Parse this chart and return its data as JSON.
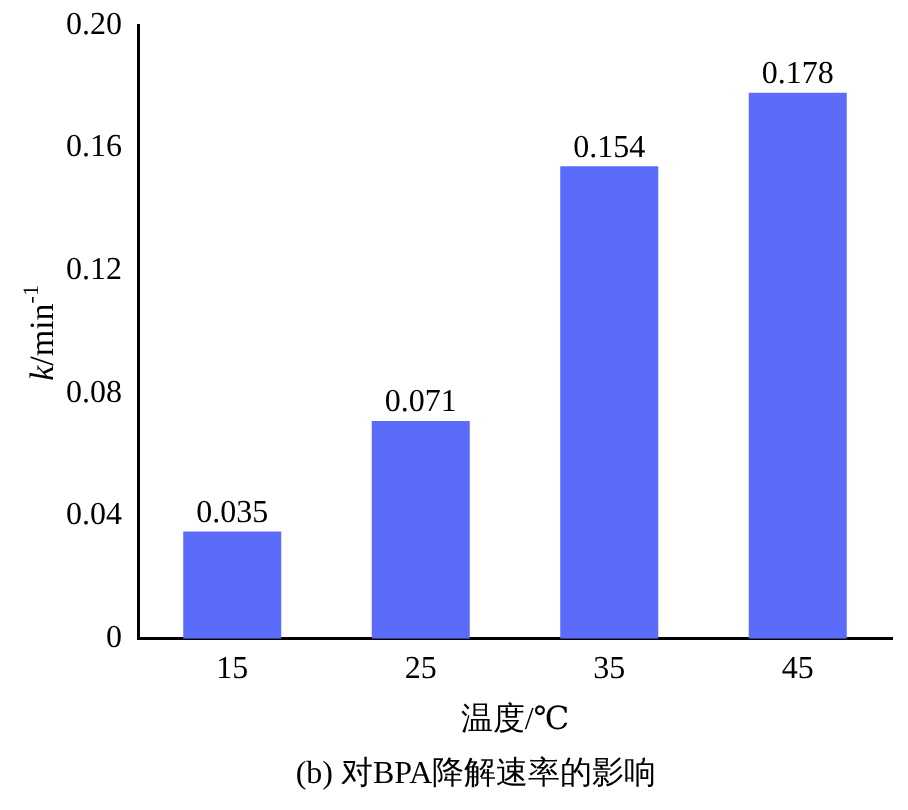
{
  "chart_data": {
    "type": "bar",
    "title": "(b) 对BPA降解速率的影响",
    "xlabel": "温度/℃",
    "ylabel": "k/min$^{-1}$",
    "categories": [
      "15",
      "25",
      "35",
      "45"
    ],
    "values": [
      0.035,
      0.071,
      0.154,
      0.178
    ],
    "color": "#5b6cfb",
    "ylim": [
      0,
      0.2
    ],
    "yticks": [
      0,
      0.04,
      0.08,
      0.12,
      0.16,
      {
        "value": 0.2,
        "label": "0.20"
      }
    ],
    "data_labels": true,
    "grid": false,
    "legend": false
  }
}
